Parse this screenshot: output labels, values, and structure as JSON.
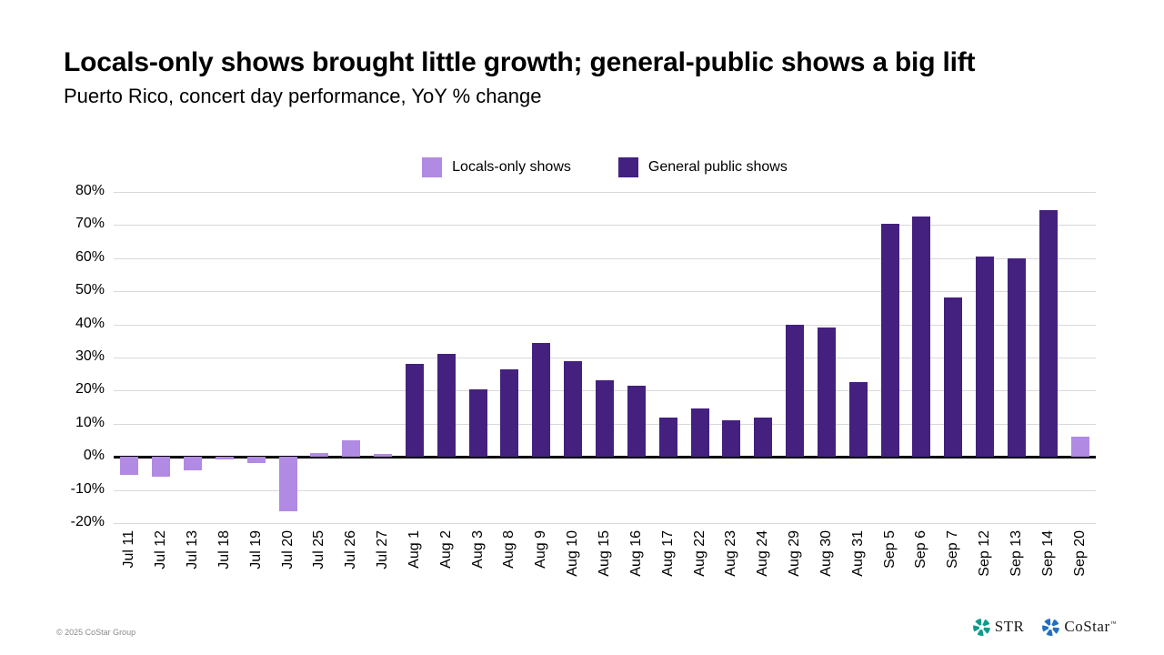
{
  "chart_data": {
    "type": "bar",
    "title": "Locals-only shows brought little growth; general-public shows a big lift",
    "subtitle": "Puerto Rico, concert day performance, YoY % change",
    "categories": [
      "Jul 11",
      "Jul 12",
      "Jul 13",
      "Jul 18",
      "Jul 19",
      "Jul 20",
      "Jul 25",
      "Jul 26",
      "Jul 27",
      "Aug 1",
      "Aug 2",
      "Aug 3",
      "Aug 8",
      "Aug 9",
      "Aug 10",
      "Aug 15",
      "Aug 16",
      "Aug 17",
      "Aug 22",
      "Aug 23",
      "Aug 24",
      "Aug 29",
      "Aug 30",
      "Aug 31",
      "Sep 5",
      "Sep 6",
      "Sep 7",
      "Sep 12",
      "Sep 13",
      "Sep 14",
      "Sep 20"
    ],
    "series": [
      {
        "name": "Locals-only shows",
        "color": "#b18ae3",
        "values": [
          -5.5,
          -6,
          -4,
          -0.7,
          -2,
          -16.5,
          1.2,
          5,
          0.8,
          null,
          null,
          null,
          null,
          null,
          null,
          null,
          null,
          null,
          null,
          null,
          null,
          null,
          null,
          null,
          null,
          null,
          null,
          null,
          null,
          null,
          6
        ]
      },
      {
        "name": "General public shows",
        "color": "#44217e",
        "values": [
          null,
          null,
          null,
          null,
          null,
          null,
          null,
          null,
          null,
          28,
          31,
          20.5,
          26.5,
          34.5,
          29,
          23,
          21.5,
          12,
          14.5,
          11,
          12,
          40,
          39,
          22.5,
          70.5,
          72.5,
          48,
          60.5,
          60,
          74.5,
          null
        ]
      }
    ],
    "xlabel": "",
    "ylabel": "",
    "ylim": [
      -20,
      80
    ],
    "yticks": [
      80,
      70,
      60,
      50,
      40,
      30,
      20,
      10,
      0,
      -10,
      -20
    ],
    "ytick_suffix": "%",
    "grid": true,
    "legend_position": "top"
  },
  "footer": {
    "copyright": "© 2025 CoStar Group",
    "logos": [
      {
        "name": "STR",
        "color": "#0d9b8b"
      },
      {
        "name": "CoStar",
        "color": "#1f6fc4",
        "tm": "™"
      }
    ]
  },
  "colors": {
    "gridline": "#d9d9d9",
    "zero_line": "#000000",
    "copyright_text": "#8a8a8a"
  }
}
